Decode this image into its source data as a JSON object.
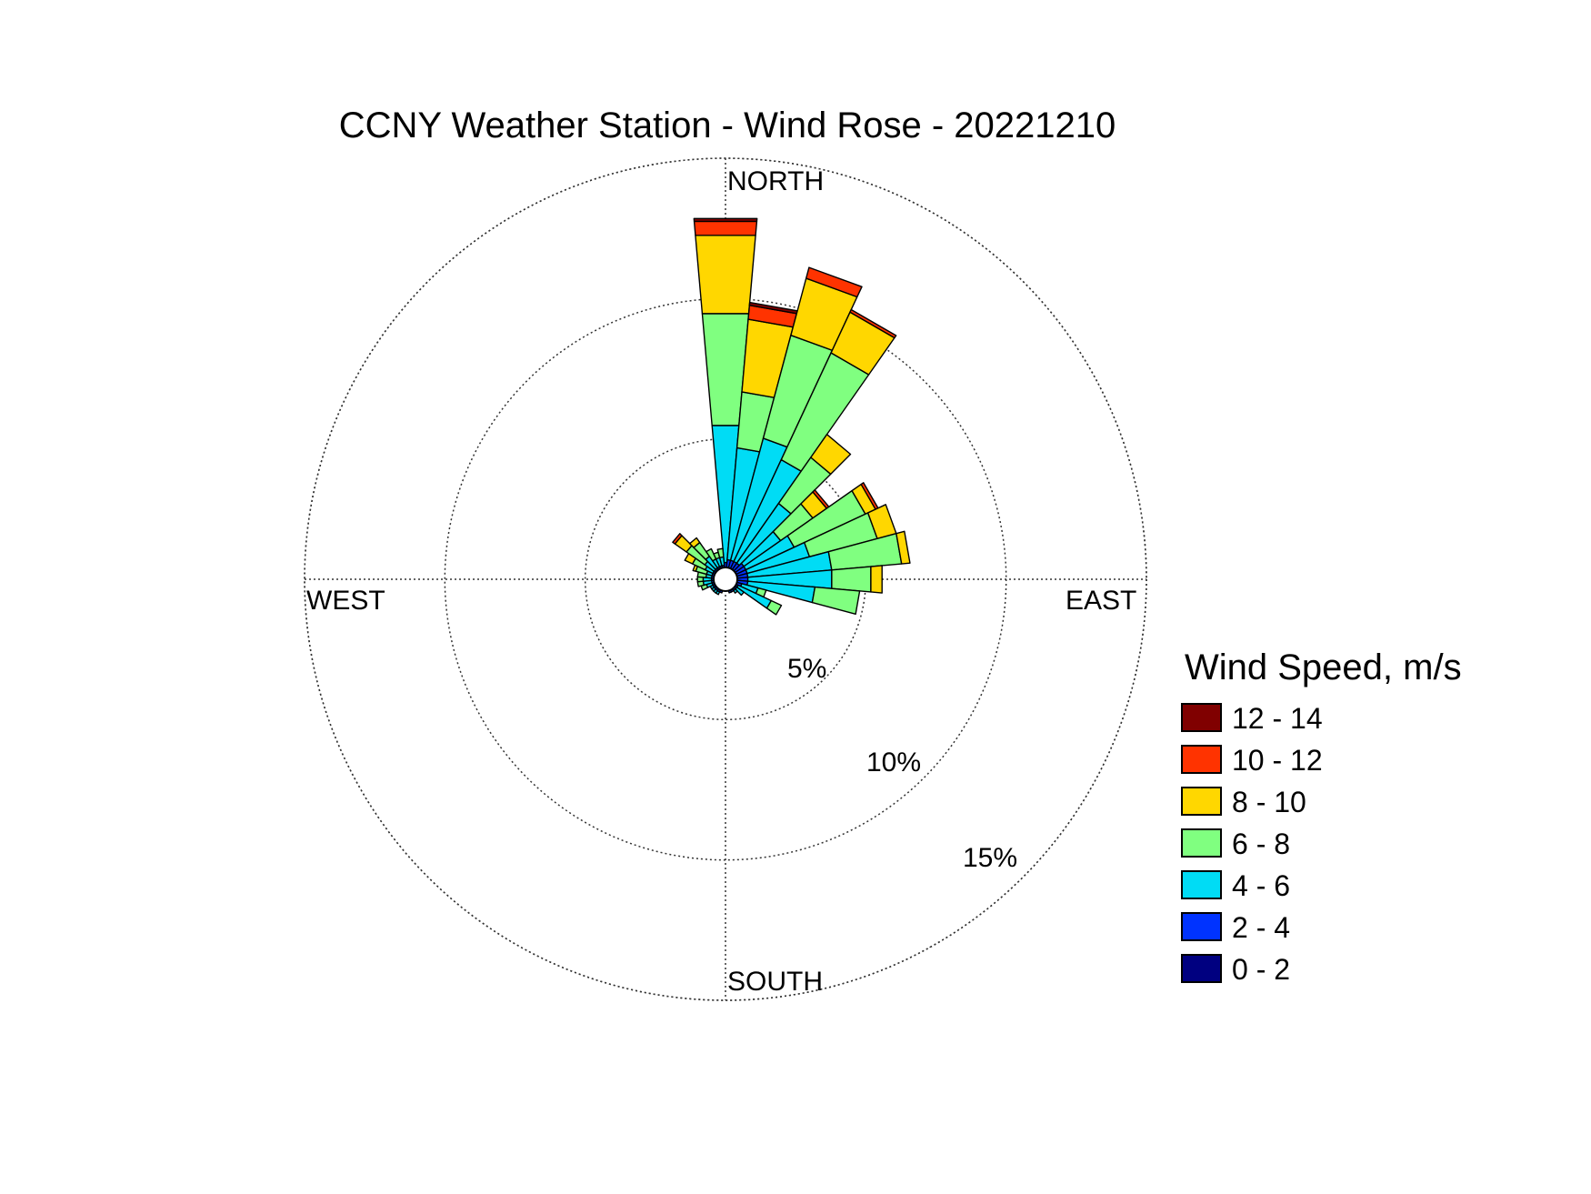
{
  "chart_data": {
    "type": "windrose",
    "title": "CCNY Weather Station - Wind Rose - 20221210",
    "direction_labels": {
      "north": "NORTH",
      "east": "EAST",
      "south": "SOUTH",
      "west": "WEST"
    },
    "radial_ticks": [
      "5%",
      "10%",
      "15%"
    ],
    "radial_tick_values": [
      5,
      10,
      15
    ],
    "radial_max": 15,
    "grid": true,
    "legend_placement": "right",
    "legend": {
      "title": "Wind Speed, m/s",
      "bins": [
        "12 - 14",
        "10 - 12",
        "8 - 10",
        "6 - 8",
        "4 - 6",
        "2 - 4",
        "0 - 2"
      ]
    },
    "speed_bins": [
      "0 - 2",
      "2 - 4",
      "4 - 6",
      "6 - 8",
      "8 - 10",
      "10 - 12",
      "12 - 14"
    ],
    "colors": [
      "#000080",
      "#0033ff",
      "#00dcf5",
      "#80ff80",
      "#ffd700",
      "#ff3300",
      "#800000"
    ],
    "sector_width_deg": 10,
    "sectors": [
      {
        "dir": 0,
        "cumulative": [
          0.3,
          0.6,
          5.5,
          9.5,
          12.3,
          12.8,
          12.9
        ]
      },
      {
        "dir": 10,
        "cumulative": [
          0.3,
          0.7,
          4.7,
          6.7,
          9.3,
          9.8,
          9.9
        ]
      },
      {
        "dir": 20,
        "cumulative": [
          0.3,
          0.7,
          5.2,
          9.0,
          11.1,
          11.5,
          11.5
        ]
      },
      {
        "dir": 30,
        "cumulative": [
          0.3,
          0.7,
          4.7,
          8.9,
          10.5,
          10.6,
          10.6
        ]
      },
      {
        "dir": 40,
        "cumulative": [
          0.3,
          0.7,
          3.3,
          5.3,
          6.3,
          6.3,
          6.3
        ]
      },
      {
        "dir": 50,
        "cumulative": [
          0.3,
          0.8,
          2.4,
          3.8,
          4.4,
          4.5,
          4.5
        ]
      },
      {
        "dir": 60,
        "cumulative": [
          0.3,
          0.8,
          2.7,
          5.5,
          5.9,
          6.0,
          6.0
        ]
      },
      {
        "dir": 70,
        "cumulative": [
          0.3,
          0.8,
          3.1,
          5.6,
          6.3,
          6.3,
          6.3
        ]
      },
      {
        "dir": 80,
        "cumulative": [
          0.3,
          0.8,
          3.8,
          6.3,
          6.6,
          6.6,
          6.6
        ]
      },
      {
        "dir": 90,
        "cumulative": [
          0.3,
          0.8,
          3.8,
          5.2,
          5.6,
          5.6,
          5.6
        ]
      },
      {
        "dir": 100,
        "cumulative": [
          0.3,
          0.8,
          3.2,
          4.8,
          4.8,
          4.8,
          4.8
        ]
      },
      {
        "dir": 110,
        "cumulative": [
          0.3,
          0.6,
          1.2,
          1.5,
          1.5,
          1.5,
          1.5
        ]
      },
      {
        "dir": 120,
        "cumulative": [
          0.3,
          0.5,
          1.8,
          2.2,
          2.2,
          2.2,
          2.2
        ]
      },
      {
        "dir": 130,
        "cumulative": [
          0.3,
          0.5,
          0.8,
          0.8,
          0.8,
          0.8,
          0.8
        ]
      },
      {
        "dir": 140,
        "cumulative": [
          0.3,
          0.5,
          0.6,
          0.6,
          0.6,
          0.6,
          0.6
        ]
      },
      {
        "dir": 150,
        "cumulative": [
          0.3,
          0.5,
          0.5,
          0.5,
          0.5,
          0.5,
          0.5
        ]
      },
      {
        "dir": 160,
        "cumulative": [
          0.3,
          0.5,
          0.5,
          0.5,
          0.5,
          0.5,
          0.5
        ]
      },
      {
        "dir": 170,
        "cumulative": [
          0.3,
          0.4,
          0.4,
          0.4,
          0.4,
          0.4,
          0.4
        ]
      },
      {
        "dir": 180,
        "cumulative": [
          0.3,
          0.4,
          0.4,
          0.4,
          0.4,
          0.4,
          0.4
        ]
      },
      {
        "dir": 190,
        "cumulative": [
          0.3,
          0.4,
          0.4,
          0.4,
          0.4,
          0.4,
          0.4
        ]
      },
      {
        "dir": 200,
        "cumulative": [
          0.3,
          0.5,
          0.5,
          0.5,
          0.5,
          0.5,
          0.5
        ]
      },
      {
        "dir": 210,
        "cumulative": [
          0.3,
          0.5,
          0.6,
          0.6,
          0.6,
          0.6,
          0.6
        ]
      },
      {
        "dir": 220,
        "cumulative": [
          0.3,
          0.5,
          0.6,
          0.6,
          0.6,
          0.6,
          0.6
        ]
      },
      {
        "dir": 230,
        "cumulative": [
          0.3,
          0.5,
          0.6,
          0.6,
          0.6,
          0.6,
          0.6
        ]
      },
      {
        "dir": 240,
        "cumulative": [
          0.3,
          0.5,
          0.6,
          0.6,
          0.6,
          0.6,
          0.6
        ]
      },
      {
        "dir": 250,
        "cumulative": [
          0.3,
          0.5,
          0.7,
          0.9,
          0.9,
          0.9,
          0.9
        ]
      },
      {
        "dir": 260,
        "cumulative": [
          0.3,
          0.5,
          0.8,
          1.0,
          1.0,
          1.0,
          1.0
        ]
      },
      {
        "dir": 270,
        "cumulative": [
          0.3,
          0.5,
          0.8,
          1.0,
          1.0,
          1.0,
          1.0
        ]
      },
      {
        "dir": 280,
        "cumulative": [
          0.3,
          0.5,
          0.7,
          1.0,
          1.0,
          1.0,
          1.0
        ]
      },
      {
        "dir": 290,
        "cumulative": [
          0.3,
          0.5,
          0.7,
          1.1,
          1.2,
          1.2,
          1.2
        ]
      },
      {
        "dir": 300,
        "cumulative": [
          0.3,
          0.5,
          0.8,
          1.3,
          1.6,
          1.6,
          1.6
        ]
      },
      {
        "dir": 310,
        "cumulative": [
          0.3,
          0.5,
          0.9,
          1.7,
          2.2,
          2.3,
          2.3
        ]
      },
      {
        "dir": 320,
        "cumulative": [
          0.3,
          0.5,
          1.0,
          1.6,
          1.8,
          1.8,
          1.8
        ]
      },
      {
        "dir": 330,
        "cumulative": [
          0.3,
          0.5,
          0.8,
          1.2,
          1.2,
          1.2,
          1.2
        ]
      },
      {
        "dir": 340,
        "cumulative": [
          0.3,
          0.5,
          0.8,
          1.0,
          1.0,
          1.0,
          1.0
        ]
      },
      {
        "dir": 350,
        "cumulative": [
          0.3,
          0.5,
          0.8,
          1.1,
          1.1,
          1.1,
          1.1
        ]
      }
    ]
  }
}
